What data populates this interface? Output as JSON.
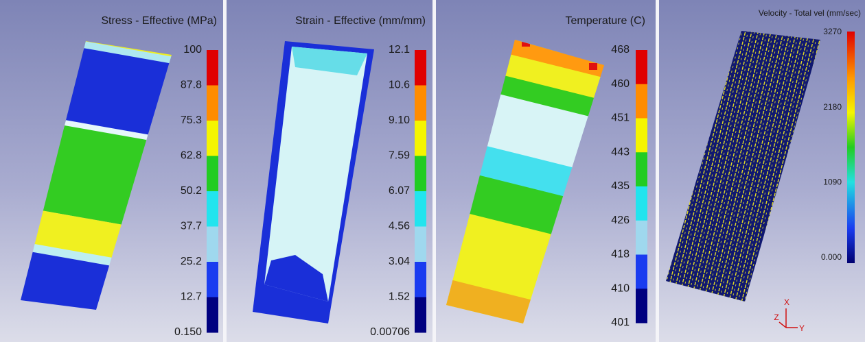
{
  "panels": [
    {
      "title": "Stress - Effective (MPa)",
      "legend": {
        "labels": [
          "100",
          "87.8",
          "75.3",
          "62.8",
          "50.2",
          "37.7",
          "25.2",
          "12.7",
          "0.150"
        ]
      }
    },
    {
      "title": "Strain - Effective (mm/mm)",
      "legend": {
        "labels": [
          "12.1",
          "10.6",
          "9.10",
          "7.59",
          "6.07",
          "4.56",
          "3.04",
          "1.52",
          "0.00706"
        ]
      }
    },
    {
      "title": "Temperature (C)",
      "legend": {
        "labels": [
          "468",
          "460",
          "451",
          "443",
          "435",
          "426",
          "418",
          "410",
          "401"
        ]
      }
    },
    {
      "title": "Velocity - Total vel (mm/sec)",
      "legend": {
        "labels": [
          "3270",
          "2180",
          "1090",
          "0.000"
        ]
      }
    }
  ],
  "axes_triad": {
    "x": "X",
    "y": "Y",
    "z": "Z"
  }
}
